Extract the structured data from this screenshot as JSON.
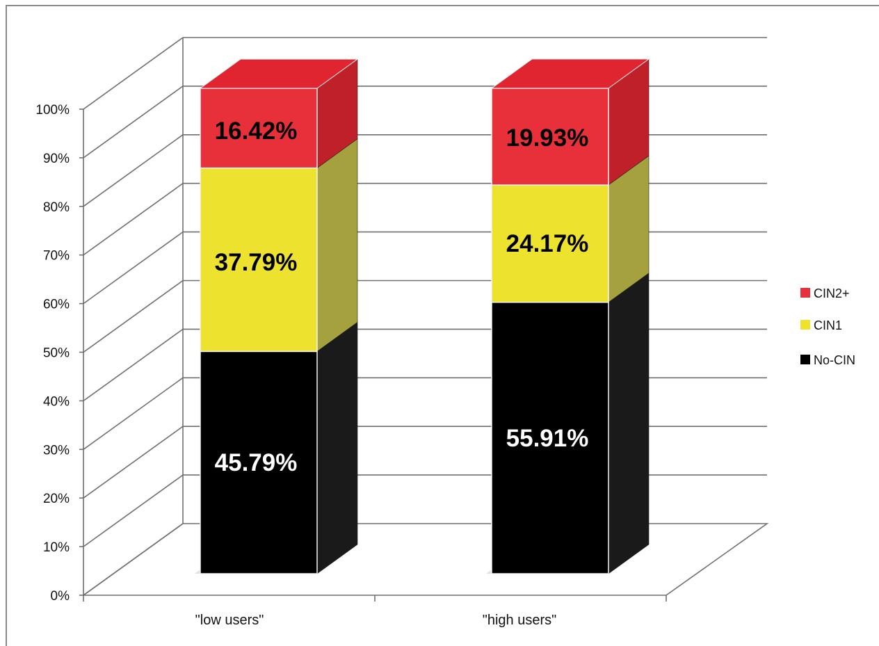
{
  "chart_data": {
    "type": "bar",
    "stacked": true,
    "style": "3d",
    "title": "",
    "xlabel": "",
    "ylabel": "",
    "categories": [
      "\"low users\"",
      "\"high users\""
    ],
    "ylim": [
      0,
      100
    ],
    "y_ticks": [
      "0%",
      "10%",
      "20%",
      "30%",
      "40%",
      "50%",
      "60%",
      "70%",
      "80%",
      "90%",
      "100%"
    ],
    "grid": true,
    "legend_position": "right",
    "series": [
      {
        "name": "No-CIN",
        "values": [
          45.79,
          55.91
        ],
        "labels": [
          "45.79%",
          "55.91%"
        ],
        "color": "#000000",
        "side_color": "#1a1a1a",
        "label_color": "#ffffff"
      },
      {
        "name": "CIN1",
        "values": [
          37.79,
          24.17
        ],
        "labels": [
          "37.79%",
          "24.17%"
        ],
        "color": "#ede32e",
        "side_color": "#a6a13f",
        "label_color": "#000000"
      },
      {
        "name": "CIN2+",
        "values": [
          16.42,
          19.93
        ],
        "labels": [
          "16.42%",
          "19.93%"
        ],
        "color": "#e8303a",
        "side_color": "#c02128",
        "top_color": "#e02430",
        "label_color": "#000000"
      }
    ],
    "legend_order": [
      "CIN2+",
      "CIN1",
      "No-CIN"
    ]
  }
}
